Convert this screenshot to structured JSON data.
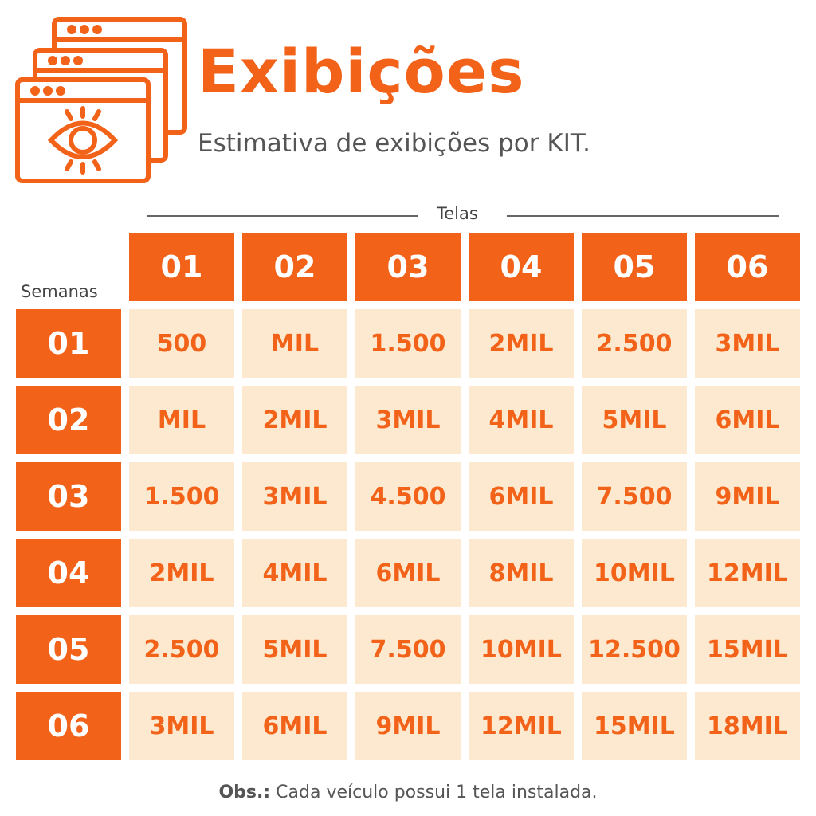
{
  "title": "Exibições",
  "subtitle": "Estimativa de exibições por KIT.",
  "colors": {
    "accent": "#F26218",
    "cell_bg": "#FDE9CF",
    "text": "#555555"
  },
  "icon": "browser-windows-eye-icon",
  "chart_data": {
    "type": "table",
    "column_group_label": "Telas",
    "row_group_label": "Semanas",
    "columns": [
      "01",
      "02",
      "03",
      "04",
      "05",
      "06"
    ],
    "rows": [
      {
        "label": "01",
        "values": [
          "500",
          "MIL",
          "1.500",
          "2MIL",
          "2.500",
          "3MIL"
        ]
      },
      {
        "label": "02",
        "values": [
          "MIL",
          "2MIL",
          "3MIL",
          "4MIL",
          "5MIL",
          "6MIL"
        ]
      },
      {
        "label": "03",
        "values": [
          "1.500",
          "3MIL",
          "4.500",
          "6MIL",
          "7.500",
          "9MIL"
        ]
      },
      {
        "label": "04",
        "values": [
          "2MIL",
          "4MIL",
          "6MIL",
          "8MIL",
          "10MIL",
          "12MIL"
        ]
      },
      {
        "label": "05",
        "values": [
          "2.500",
          "5MIL",
          "7.500",
          "10MIL",
          "12.500",
          "15MIL"
        ]
      },
      {
        "label": "06",
        "values": [
          "3MIL",
          "6MIL",
          "9MIL",
          "12MIL",
          "15MIL",
          "18MIL"
        ]
      }
    ]
  },
  "footer": {
    "label": "Obs.:",
    "text": " Cada veículo possui 1 tela instalada."
  }
}
